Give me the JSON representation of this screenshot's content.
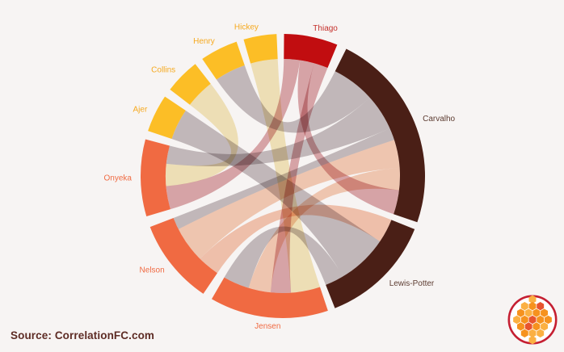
{
  "page": {
    "background": "#f7f4f3"
  },
  "footer": {
    "source_label": "Source: CorrelationFC.com",
    "text_color": "#5e2c25"
  },
  "logo": {
    "border_color": "#c51f32",
    "background": "#ffffff",
    "palette": {
      "light": "#fbb042",
      "orange": "#f6921e",
      "red": "#e8542e"
    },
    "rows": [
      [
        "light"
      ],
      [
        "light",
        "orange",
        "red"
      ],
      [
        "orange",
        "light",
        "orange",
        "orange"
      ],
      [
        "light",
        "orange",
        "red",
        "orange",
        "orange"
      ],
      [
        "orange",
        "red",
        "orange",
        "light"
      ],
      [
        "orange",
        "light",
        "light"
      ],
      [
        "light"
      ]
    ]
  },
  "chart_data": {
    "type": "chord",
    "legend": "none",
    "angle_units": "degrees_clockwise_from_top",
    "arc_colors": {
      "gold": "#fcbe26",
      "red": "#c10d10",
      "dark": "#4a1f16",
      "orange": "#f06a42"
    },
    "ribbon_colors": {
      "cream": "#f3e2ae",
      "grey": "#a59a9d",
      "pink": "#bb555e",
      "peach": "#f0ae88",
      "salmon": "#ee9a74"
    },
    "ribbon_opacity": {
      "cream": 0.8,
      "grey": 0.62,
      "pink": 0.5,
      "peach": 0.6,
      "salmon": 0.55
    },
    "segments": [
      {
        "label": "Thiago",
        "span": [
          0.5,
          22.5
        ],
        "color_key": "red",
        "label_color": "#c5302b"
      },
      {
        "label": "Carvalho",
        "span": [
          26.5,
          109
        ],
        "color_key": "dark",
        "label_color": "#5d3c31"
      },
      {
        "label": "Lewis-Potter",
        "span": [
          112,
          158.5
        ],
        "color_key": "dark",
        "label_color": "#5d3c31"
      },
      {
        "label": "Jensen",
        "span": [
          161.5,
          210
        ],
        "color_key": "orange",
        "label_color": "#f06a42"
      },
      {
        "label": "Nelson",
        "span": [
          214,
          249
        ],
        "color_key": "orange",
        "label_color": "#f06a42"
      },
      {
        "label": "Onyeka",
        "span": [
          253.5,
          285
        ],
        "color_key": "orange",
        "label_color": "#f06a42"
      },
      {
        "label": "Ajer",
        "span": [
          288.5,
          304
        ],
        "color_key": "gold",
        "label_color": "#f6a91f"
      },
      {
        "label": "Collins",
        "span": [
          307.5,
          322
        ],
        "color_key": "gold",
        "label_color": "#f6a91f"
      },
      {
        "label": "Henry",
        "span": [
          325.5,
          341
        ],
        "color_key": "gold",
        "label_color": "#f6a91f"
      },
      {
        "label": "Hickey",
        "span": [
          344,
          357.5
        ],
        "color_key": "gold",
        "label_color": "#f6a91f"
      }
    ],
    "chords": [
      {
        "source": "Hickey",
        "target": "Jensen",
        "source_span": [
          344,
          357.5
        ],
        "target_span": [
          161.5,
          176
        ],
        "color_key": "cream"
      },
      {
        "source": "Henry",
        "target": "Carvalho",
        "source_span": [
          325.5,
          341
        ],
        "target_span": [
          26.5,
          48
        ],
        "color_key": "grey"
      },
      {
        "source": "Collins",
        "target": "Onyeka",
        "source_span": [
          307.5,
          322
        ],
        "target_span": [
          265,
          276
        ],
        "color_key": "cream"
      },
      {
        "source": "Ajer",
        "target": "Lewis-Potter",
        "source_span": [
          288.5,
          304
        ],
        "target_span": [
          124,
          149
        ],
        "color_key": "grey"
      },
      {
        "source": "Thiago",
        "target": "Onyeka",
        "source_span": [
          0.5,
          8.5
        ],
        "target_span": [
          253.5,
          265
        ],
        "color_key": "pink"
      },
      {
        "source": "Thiago",
        "target": "Carvalho",
        "source_span": [
          8.5,
          15.5
        ],
        "target_span": [
          97,
          109
        ],
        "color_key": "pink"
      },
      {
        "source": "Thiago",
        "target": "Jensen",
        "source_span": [
          15.5,
          22.5
        ],
        "target_span": [
          176,
          186
        ],
        "color_key": "pink"
      },
      {
        "source": "Onyeka",
        "target": "Carvalho",
        "source_span": [
          276,
          285
        ],
        "target_span": [
          48,
          66
        ],
        "color_key": "grey"
      },
      {
        "source": "Nelson",
        "target": "Carvalho",
        "source_span": [
          243,
          249
        ],
        "target_span": [
          66,
          72
        ],
        "color_key": "grey"
      },
      {
        "source": "Nelson",
        "target": "Carvalho",
        "source_span": [
          225,
          243
        ],
        "target_span": [
          72,
          86
        ],
        "color_key": "peach"
      },
      {
        "source": "Jensen",
        "target": "Carvalho",
        "source_span": [
          186,
          197
        ],
        "target_span": [
          86,
          97
        ],
        "color_key": "peach"
      },
      {
        "source": "Jensen",
        "target": "Lewis-Potter",
        "source_span": [
          197,
          210
        ],
        "target_span": [
          149,
          158.5
        ],
        "color_key": "grey"
      },
      {
        "source": "Nelson",
        "target": "Lewis-Potter",
        "source_span": [
          214,
          225
        ],
        "target_span": [
          112,
          124
        ],
        "color_key": "salmon"
      }
    ]
  }
}
